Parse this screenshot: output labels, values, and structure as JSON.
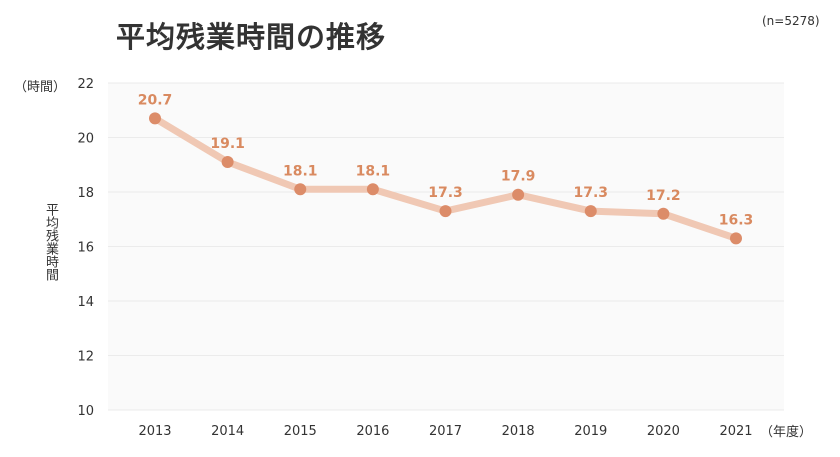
{
  "chart_data": {
    "type": "line",
    "title": "平均残業時間の推移",
    "note": "(n=5278)",
    "xlabel": "（年度）",
    "ylabel": "平均残業時間",
    "yunit": "（時間）",
    "categories": [
      "2013",
      "2014",
      "2015",
      "2016",
      "2017",
      "2018",
      "2019",
      "2020",
      "2021"
    ],
    "series": [
      {
        "name": "平均残業時間",
        "values": [
          20.7,
          19.1,
          18.1,
          18.1,
          17.3,
          17.9,
          17.3,
          17.2,
          16.3
        ],
        "labels": [
          "20.7",
          "19.1",
          "18.1",
          "18.1",
          "17.3",
          "17.9",
          "17.3",
          "17.2",
          "16.3"
        ]
      }
    ],
    "ylim": [
      10,
      22
    ],
    "yticks": [
      "10",
      "12",
      "14",
      "16",
      "18",
      "20",
      "22"
    ],
    "grid": true,
    "colors": {
      "line": "#f0c8b4",
      "marker": "#dc8c69",
      "label": "#d98a60",
      "plot_bg": "#fafafa",
      "grid": "#ebebeb"
    }
  }
}
